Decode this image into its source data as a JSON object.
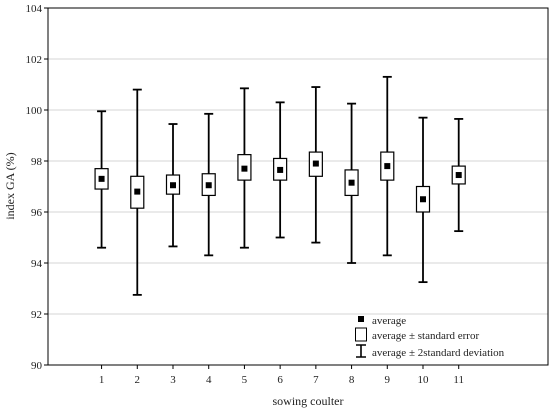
{
  "chart_data": {
    "type": "box",
    "title": "",
    "xlabel": "sowing coulter",
    "ylabel": "index GA (%)",
    "ylim": [
      90,
      104
    ],
    "yticks": [
      90,
      92,
      94,
      96,
      98,
      100,
      102,
      104
    ],
    "xlim": [
      -0.5,
      13.5
    ],
    "grid": "horizontal",
    "legend_position": "bottom-right",
    "categories": [
      "1",
      "2",
      "3",
      "4",
      "5",
      "6",
      "7",
      "8",
      "9",
      "10",
      "11"
    ],
    "series": [
      {
        "name": "average",
        "values": [
          97.3,
          96.8,
          97.05,
          97.05,
          97.7,
          97.65,
          97.9,
          97.15,
          97.8,
          96.5,
          97.45
        ]
      },
      {
        "name": "average ± standard error",
        "low": [
          96.9,
          96.15,
          96.7,
          96.65,
          97.25,
          97.25,
          97.4,
          96.65,
          97.25,
          96.0,
          97.1
        ],
        "high": [
          97.7,
          97.4,
          97.45,
          97.5,
          98.25,
          98.1,
          98.35,
          97.65,
          98.35,
          97.0,
          97.8
        ]
      },
      {
        "name": "average ± 2standard deviation",
        "low": [
          94.6,
          92.75,
          94.65,
          94.3,
          94.6,
          95.0,
          94.8,
          94.0,
          94.3,
          93.25,
          95.25
        ],
        "high": [
          99.95,
          100.8,
          99.45,
          99.85,
          100.85,
          100.3,
          100.9,
          100.25,
          101.3,
          99.7,
          99.65
        ]
      }
    ]
  }
}
